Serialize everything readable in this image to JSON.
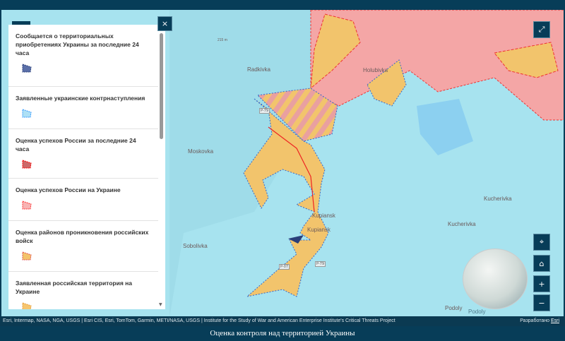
{
  "legend": {
    "close_icon": "close-icon",
    "items": [
      {
        "label": "Сообщается о территориальных приобретениях Украины за последние 24 часа",
        "fill": "#5b6fa8",
        "stroke": "#2a3f7a"
      },
      {
        "label": "Заявленные украинские контрнаступления",
        "fill": "#aee0f5",
        "stroke": "#3399ff"
      },
      {
        "label": "Оценка успехов России за последние 24 часа",
        "fill": "#cc6a6a",
        "stroke": "#ff0000"
      },
      {
        "label": "Оценка успехов России на Украине",
        "fill": "#f7b3b3",
        "stroke": "#ff3333"
      },
      {
        "label": "Оценка районов проникновения российских войск",
        "fill": "#f3c36b",
        "stroke": "#e05050"
      },
      {
        "label": "Заявленная российская территория на Украине",
        "fill": "#f6c56e",
        "stroke": "#e8a040"
      }
    ]
  },
  "map": {
    "places": [
      "Radkivka",
      "Holubivka",
      "Moskovka",
      "Kupiansk",
      "Kupiansk",
      "Sobolivka",
      "Kucherivka",
      "Kucherivka",
      "Podoly",
      "Podoly"
    ],
    "roads": [
      "P-79",
      "P-79",
      "P-07"
    ],
    "elevation": "215 m",
    "colors": {
      "russian_advance": "#f4a6a6",
      "infiltration": "#f2c46c",
      "water": "#a7e3ef"
    }
  },
  "controls": {
    "expand_icon": "expand-icon",
    "locate_icon": "locate-icon",
    "home_icon": "home-icon",
    "zoom_in": "+",
    "zoom_out": "−",
    "close": "×"
  },
  "attribution": "Esri, Intermap, NASA, NGA, USGS | Esri CIS, Esri, TomTom, Garmin, METI/NASA, USGS | Institute for the Study of War and American Enterprise Institute's Critical Threats Project",
  "powered_by": "Разработано",
  "powered_link": "Esri",
  "footer_title": "Оценка контроля над территорией Украины"
}
